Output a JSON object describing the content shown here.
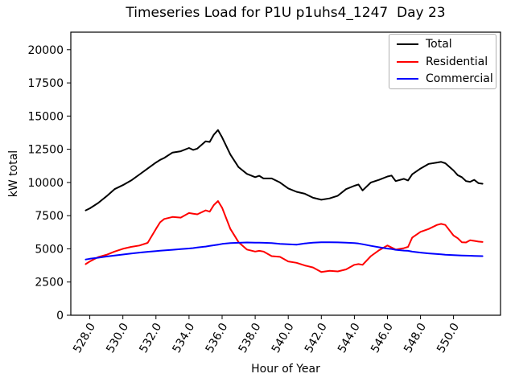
{
  "chart_data": {
    "type": "line",
    "title": "Timeseries Load for P1U p1uhs4_1247  Day 23",
    "xlabel": "Hour of Year",
    "ylabel": "kW total",
    "legend_position": "upper right",
    "grid": false,
    "xlim": [
      526.85,
      552.84
    ],
    "ylim": [
      0,
      21320
    ],
    "xticks": [
      528,
      530,
      532,
      534,
      536,
      538,
      540,
      542,
      544,
      546,
      548,
      550
    ],
    "xtick_labels": [
      "528.0",
      "530.0",
      "532.0",
      "534.0",
      "536.0",
      "538.0",
      "540.0",
      "542.0",
      "544.0",
      "546.0",
      "548.0",
      "550.0"
    ],
    "xtick_rotation_deg": 60,
    "yticks": [
      0,
      2500,
      5000,
      7500,
      10000,
      12500,
      15000,
      17500,
      20000
    ],
    "x": [
      527.75,
      528,
      528.5,
      529,
      529.5,
      530,
      530.5,
      531,
      531.5,
      532,
      532.25,
      532.5,
      533,
      533.5,
      534,
      534.25,
      534.5,
      535,
      535.25,
      535.5,
      535.75,
      536,
      536.5,
      537,
      537.5,
      538,
      538.25,
      538.5,
      539,
      539.5,
      540,
      540.5,
      541,
      541.5,
      542,
      542.5,
      543,
      543.5,
      544,
      544.25,
      544.5,
      545,
      545.5,
      546,
      546.25,
      546.5,
      547,
      547.25,
      547.5,
      548,
      548.5,
      549,
      549.25,
      549.5,
      550,
      550.25,
      550.5,
      550.75,
      551,
      551.25,
      551.5,
      551.75
    ],
    "series": [
      {
        "name": "Total",
        "color": "#000000",
        "values": [
          7900,
          8050,
          8450,
          8950,
          9500,
          9800,
          10150,
          10600,
          11050,
          11500,
          11700,
          11850,
          12250,
          12350,
          12600,
          12450,
          12550,
          13100,
          13050,
          13600,
          13950,
          13400,
          12100,
          11150,
          10650,
          10400,
          10500,
          10300,
          10300,
          10000,
          9550,
          9300,
          9150,
          8850,
          8700,
          8800,
          9000,
          9500,
          9750,
          9850,
          9400,
          10000,
          10200,
          10450,
          10520,
          10100,
          10270,
          10150,
          10620,
          11050,
          11400,
          11500,
          11550,
          11450,
          10900,
          10550,
          10400,
          10100,
          10050,
          10200,
          9950,
          9900
        ]
      },
      {
        "name": "Residential",
        "color": "#ff0000",
        "values": [
          3850,
          4050,
          4380,
          4550,
          4800,
          5000,
          5150,
          5250,
          5450,
          6500,
          7000,
          7250,
          7400,
          7350,
          7700,
          7650,
          7600,
          7900,
          7800,
          8300,
          8600,
          8100,
          6500,
          5500,
          4950,
          4800,
          4850,
          4800,
          4450,
          4400,
          4050,
          3950,
          3750,
          3600,
          3250,
          3350,
          3300,
          3450,
          3800,
          3850,
          3800,
          4450,
          4900,
          5250,
          5100,
          4950,
          5050,
          5150,
          5850,
          6280,
          6500,
          6800,
          6880,
          6800,
          6000,
          5800,
          5500,
          5480,
          5650,
          5600,
          5550,
          5520
        ]
      },
      {
        "name": "Commercial",
        "color": "#0000ff",
        "values": [
          4200,
          4250,
          4330,
          4420,
          4500,
          4570,
          4650,
          4720,
          4780,
          4830,
          4855,
          4880,
          4930,
          4980,
          5030,
          5060,
          5100,
          5170,
          5220,
          5270,
          5320,
          5370,
          5430,
          5460,
          5480,
          5470,
          5465,
          5460,
          5440,
          5380,
          5340,
          5320,
          5400,
          5470,
          5500,
          5500,
          5490,
          5470,
          5440,
          5400,
          5350,
          5230,
          5120,
          5020,
          4990,
          4930,
          4870,
          4850,
          4790,
          4720,
          4660,
          4610,
          4585,
          4560,
          4530,
          4515,
          4500,
          4490,
          4480,
          4470,
          4460,
          4450
        ]
      }
    ]
  }
}
